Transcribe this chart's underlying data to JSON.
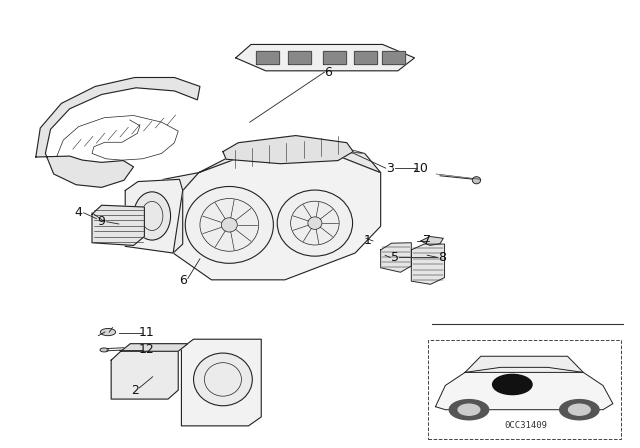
{
  "bg_color": "#ffffff",
  "fig_width": 6.4,
  "fig_height": 4.48,
  "dpi": 100,
  "diagram_code": "0CC31409",
  "line_color": "#222222",
  "text_color": "#111111",
  "label_fontsize": 9
}
